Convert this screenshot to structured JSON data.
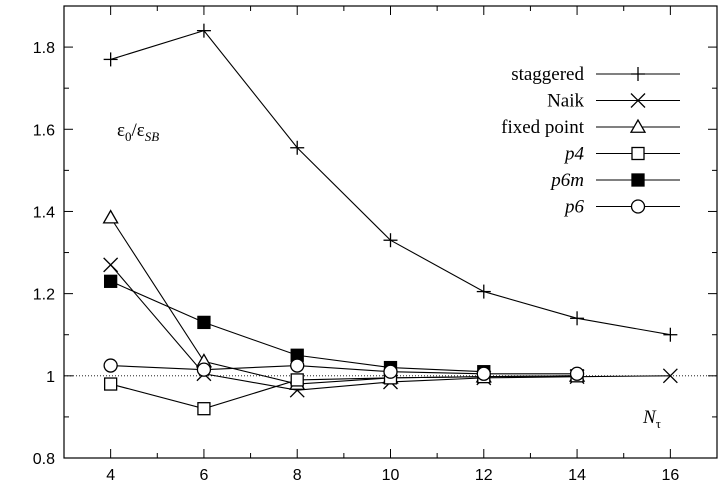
{
  "chart_data": {
    "type": "line",
    "xlabel": "N_τ",
    "ylabel": "ε0/εSB",
    "xlim": [
      3,
      17
    ],
    "ylim": [
      0.8,
      1.9
    ],
    "x_ticks": [
      4,
      6,
      8,
      10,
      12,
      14,
      16
    ],
    "y_ticks": [
      0.8,
      1,
      1.2,
      1.4,
      1.6,
      1.8
    ],
    "x_tick_labels": [
      "4",
      "6",
      "8",
      "10",
      "12",
      "14",
      "16"
    ],
    "y_tick_labels": [
      "0.8",
      "1",
      "1.2",
      "1.4",
      "1.6",
      "1.8"
    ],
    "reference_line": 1.0,
    "legend_position": "top-right",
    "annotations": {
      "ratio_main": "ε",
      "ratio_sub_num": "0",
      "ratio_sep": "/ε",
      "ratio_sub_den": "SB",
      "x_main": "N",
      "x_sub": "τ"
    },
    "series": [
      {
        "name": "staggered",
        "marker": "plus",
        "x": [
          4,
          6,
          8,
          10,
          12,
          14,
          16
        ],
        "y": [
          1.77,
          1.84,
          1.555,
          1.33,
          1.205,
          1.14,
          1.1
        ]
      },
      {
        "name": "Naik",
        "marker": "cross",
        "x": [
          4,
          6,
          8,
          10,
          12,
          14,
          16
        ],
        "y": [
          1.27,
          1.005,
          0.965,
          0.985,
          0.995,
          0.998,
          1.0
        ]
      },
      {
        "name": "fixed point",
        "marker": "triangle",
        "x": [
          4,
          6,
          8,
          10,
          12,
          14
        ],
        "y": [
          1.385,
          1.035,
          0.98,
          0.995,
          0.998,
          1.0
        ]
      },
      {
        "name": "p4",
        "marker": "square-open",
        "x": [
          4,
          6,
          8,
          10,
          12,
          14
        ],
        "y": [
          0.98,
          0.92,
          0.99,
          0.995,
          0.998,
          1.0
        ]
      },
      {
        "name": "p6m",
        "marker": "square-filled",
        "x": [
          4,
          6,
          8,
          10,
          12
        ],
        "y": [
          1.23,
          1.13,
          1.05,
          1.02,
          1.01
        ]
      },
      {
        "name": "p6",
        "marker": "circle-open",
        "x": [
          4,
          6,
          8,
          10,
          12,
          14
        ],
        "y": [
          1.025,
          1.015,
          1.025,
          1.01,
          1.005,
          1.005
        ]
      }
    ]
  }
}
